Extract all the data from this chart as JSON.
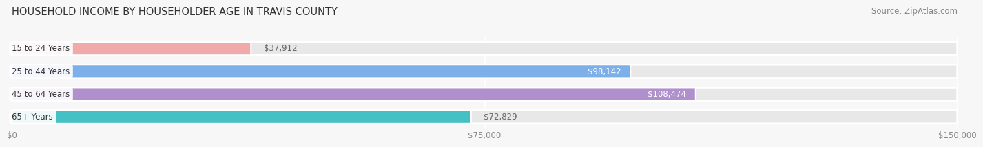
{
  "title": "HOUSEHOLD INCOME BY HOUSEHOLDER AGE IN TRAVIS COUNTY",
  "source": "Source: ZipAtlas.com",
  "categories": [
    "15 to 24 Years",
    "25 to 44 Years",
    "45 to 64 Years",
    "65+ Years"
  ],
  "values": [
    37912,
    98142,
    108474,
    72829
  ],
  "value_labels": [
    "$37,912",
    "$98,142",
    "$108,474",
    "$72,829"
  ],
  "bar_colors": [
    "#f0aaaa",
    "#7db0e8",
    "#b090cc",
    "#45c0c4"
  ],
  "bar_bg_color": "#e8e8e8",
  "value_label_inside": [
    false,
    true,
    true,
    false
  ],
  "xlim": [
    0,
    150000
  ],
  "xticks": [
    0,
    75000,
    150000
  ],
  "xticklabels": [
    "$0",
    "$75,000",
    "$150,000"
  ],
  "background_color": "#f7f7f7",
  "title_fontsize": 10.5,
  "source_fontsize": 8.5,
  "bar_label_fontsize": 8.5,
  "value_fontsize": 8.5
}
